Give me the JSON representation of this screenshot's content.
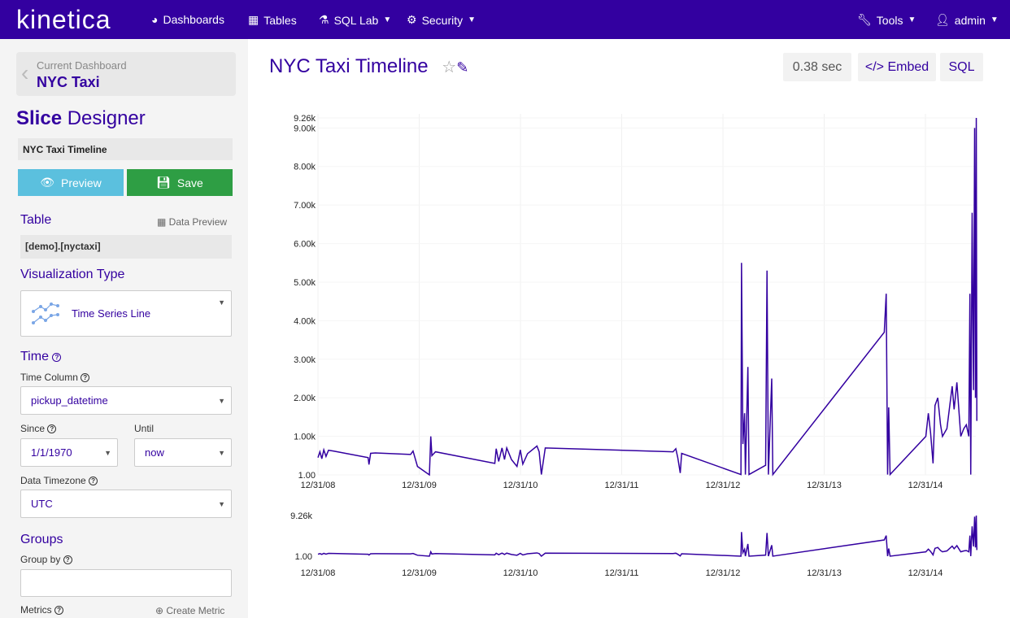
{
  "nav": {
    "logo": "kinetica",
    "items": [
      {
        "label": "Dashboards",
        "icon": "dashboard-icon"
      },
      {
        "label": "Tables",
        "icon": "table-icon"
      },
      {
        "label": "SQL Lab",
        "icon": "flask-icon"
      },
      {
        "label": "Security",
        "icon": "gears-icon"
      }
    ],
    "tools": "Tools",
    "user": "admin"
  },
  "sidebar": {
    "current_dashboard_label": "Current Dashboard",
    "current_dashboard": "NYC Taxi",
    "designer_bold": "Slice",
    "designer_rest": " Designer",
    "slice_name": "NYC Taxi Timeline",
    "preview": "Preview",
    "save": "Save",
    "table_label": "Table",
    "data_preview": "Data Preview",
    "table_value": "[demo].[nyctaxi]",
    "viz_label": "Visualization Type",
    "viz_value": "Time Series Line",
    "time_label": "Time",
    "time_column_label": "Time Column",
    "time_column": "pickup_datetime",
    "since_label": "Since",
    "since": "1/1/1970",
    "until_label": "Until",
    "until": "now",
    "tz_label": "Data Timezone",
    "tz": "UTC",
    "groups_label": "Groups",
    "group_by_label": "Group by",
    "group_by": "",
    "metrics_label": "Metrics",
    "create_metric": "Create Metric"
  },
  "header": {
    "title": "NYC Taxi Timeline",
    "timing": "0.38 sec",
    "embed": "Embed",
    "sql": "SQL"
  },
  "colors": {
    "brand": "#3300a0",
    "preview": "#5bc0de",
    "save": "#2e9e44"
  },
  "chart_data": {
    "type": "line",
    "x_ticks": [
      "12/31/08",
      "12/31/09",
      "12/31/10",
      "12/31/11",
      "12/31/12",
      "12/31/13",
      "12/31/14"
    ],
    "y_ticks": [
      "1.00",
      "1.00k",
      "2.00k",
      "3.00k",
      "4.00k",
      "5.00k",
      "6.00k",
      "7.00k",
      "8.00k",
      "9.00k",
      "9.26k"
    ],
    "ylim": [
      1,
      9260
    ],
    "mini_y_ticks": [
      "1.00",
      "9.26k"
    ],
    "points": [
      [
        "2009-01-01",
        450
      ],
      [
        "2009-01-08",
        600
      ],
      [
        "2009-01-15",
        420
      ],
      [
        "2009-01-22",
        650
      ],
      [
        "2009-01-30",
        480
      ],
      [
        "2009-02-08",
        640
      ],
      [
        "2009-02-25",
        620
      ],
      [
        "2009-07-01",
        450
      ],
      [
        "2009-07-04",
        270
      ],
      [
        "2009-07-10",
        560
      ],
      [
        "2009-07-27",
        570
      ],
      [
        "2009-12-01",
        530
      ],
      [
        "2009-12-10",
        620
      ],
      [
        "2009-12-26",
        220
      ],
      [
        "2010-02-07",
        1
      ],
      [
        "2010-02-12",
        1000
      ],
      [
        "2010-02-16",
        500
      ],
      [
        "2010-03-01",
        600
      ],
      [
        "2010-10-01",
        300
      ],
      [
        "2010-10-06",
        680
      ],
      [
        "2010-10-15",
        350
      ],
      [
        "2010-10-27",
        700
      ],
      [
        "2010-11-05",
        400
      ],
      [
        "2010-11-13",
        700
      ],
      [
        "2010-11-30",
        400
      ],
      [
        "2010-12-20",
        220
      ],
      [
        "2011-01-01",
        650
      ],
      [
        "2011-01-10",
        280
      ],
      [
        "2011-01-27",
        550
      ],
      [
        "2011-03-02",
        750
      ],
      [
        "2011-03-10",
        600
      ],
      [
        "2011-03-18",
        10
      ],
      [
        "2011-04-01",
        700
      ],
      [
        "2012-07-05",
        600
      ],
      [
        "2012-07-15",
        680
      ],
      [
        "2012-07-22",
        450
      ],
      [
        "2012-07-31",
        50
      ],
      [
        "2012-08-05",
        560
      ],
      [
        "2013-03-07",
        10
      ],
      [
        "2013-03-09",
        5500
      ],
      [
        "2013-03-14",
        800
      ],
      [
        "2013-03-20",
        1600
      ],
      [
        "2013-03-23",
        10
      ],
      [
        "2013-04-01",
        2800
      ],
      [
        "2013-04-05",
        10
      ],
      [
        "2013-06-04",
        250
      ],
      [
        "2013-06-09",
        5300
      ],
      [
        "2013-06-14",
        10
      ],
      [
        "2013-06-26",
        2500
      ],
      [
        "2013-06-30",
        10
      ],
      [
        "2014-08-06",
        3700
      ],
      [
        "2014-08-13",
        4700
      ],
      [
        "2014-08-18",
        10
      ],
      [
        "2014-08-22",
        1750
      ],
      [
        "2014-08-27",
        10
      ],
      [
        "2015-01-03",
        1000
      ],
      [
        "2015-01-12",
        1600
      ],
      [
        "2015-01-20",
        1100
      ],
      [
        "2015-01-29",
        300
      ],
      [
        "2015-02-05",
        1800
      ],
      [
        "2015-02-15",
        2000
      ],
      [
        "2015-02-25",
        1300
      ],
      [
        "2015-03-04",
        1000
      ],
      [
        "2015-03-20",
        1200
      ],
      [
        "2015-04-08",
        2300
      ],
      [
        "2015-04-15",
        1700
      ],
      [
        "2015-04-25",
        2400
      ],
      [
        "2015-05-09",
        1000
      ],
      [
        "2015-05-20",
        1200
      ],
      [
        "2015-05-29",
        1300
      ],
      [
        "2015-06-07",
        1000
      ],
      [
        "2015-06-11",
        4700
      ],
      [
        "2015-06-14",
        10
      ],
      [
        "2015-06-19",
        6800
      ],
      [
        "2015-06-24",
        2200
      ],
      [
        "2015-06-28",
        9000
      ],
      [
        "2015-07-01",
        2000
      ],
      [
        "2015-07-04",
        9260
      ],
      [
        "2015-07-06",
        1400
      ]
    ]
  }
}
